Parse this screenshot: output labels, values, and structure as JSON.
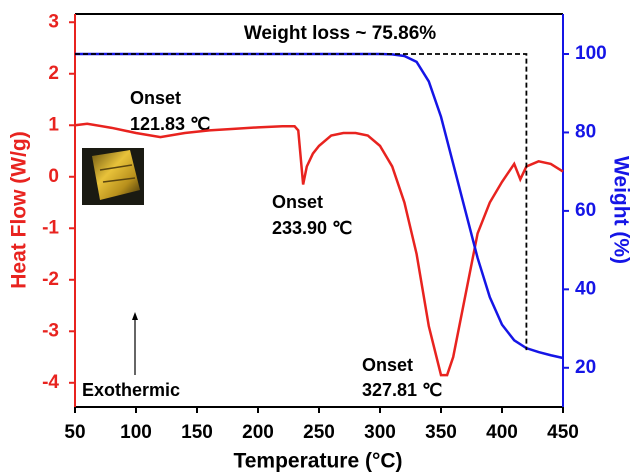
{
  "chart_data": {
    "type": "line",
    "x_label": "Temperature (°C)",
    "y_label": "Heat Flow (W/g)",
    "y2_label": "Weight (%)",
    "xlim": [
      50,
      450
    ],
    "xticks": [
      50,
      100,
      150,
      200,
      250,
      300,
      350,
      400,
      450
    ],
    "ylim": [
      -4.47,
      3.16
    ],
    "yticks": [
      -4,
      -3,
      -2,
      -1,
      0,
      1,
      2,
      3
    ],
    "y2lim": [
      10,
      110.2
    ],
    "y2ticks": [
      20,
      40,
      60,
      80,
      100
    ],
    "series": [
      {
        "color": "#e8231f",
        "axis": "y",
        "x": [
          50,
          60,
          80,
          100,
          120,
          140,
          160,
          180,
          200,
          220,
          230,
          233,
          237,
          240,
          245,
          250,
          260,
          270,
          280,
          290,
          300,
          310,
          320,
          330,
          340,
          350,
          355,
          360,
          370,
          380,
          390,
          400,
          410,
          415,
          420,
          430,
          440,
          450
        ],
        "values": [
          1.0,
          1.03,
          0.95,
          0.85,
          0.77,
          0.85,
          0.9,
          0.93,
          0.96,
          0.98,
          0.98,
          0.9,
          -0.15,
          0.2,
          0.45,
          0.6,
          0.8,
          0.85,
          0.85,
          0.8,
          0.6,
          0.2,
          -0.5,
          -1.5,
          -2.9,
          -3.85,
          -3.85,
          -3.5,
          -2.3,
          -1.1,
          -0.5,
          -0.1,
          0.25,
          -0.05,
          0.2,
          0.3,
          0.25,
          0.1
        ]
      },
      {
        "color": "#1515e6",
        "axis": "y2",
        "x": [
          50,
          100,
          200,
          300,
          310,
          320,
          330,
          340,
          350,
          360,
          370,
          380,
          390,
          400,
          410,
          420,
          430,
          440,
          450
        ],
        "values": [
          100,
          100,
          100,
          100,
          99.9,
          99.5,
          98,
          93,
          84,
          72,
          60,
          48,
          38,
          31,
          27,
          25,
          24,
          23.2,
          22.5
        ]
      }
    ],
    "reference_line": {
      "color": "#000000",
      "axis": "y2",
      "x": [
        50,
        420,
        420
      ],
      "values": [
        100,
        100,
        24.5
      ]
    },
    "annotations": [
      "Weight loss ~ 75.86%",
      "Onset",
      "121.83 ℃",
      "Onset",
      "233.90 ℃",
      "Onset",
      "327.81 ℃",
      "Exothermic"
    ]
  }
}
